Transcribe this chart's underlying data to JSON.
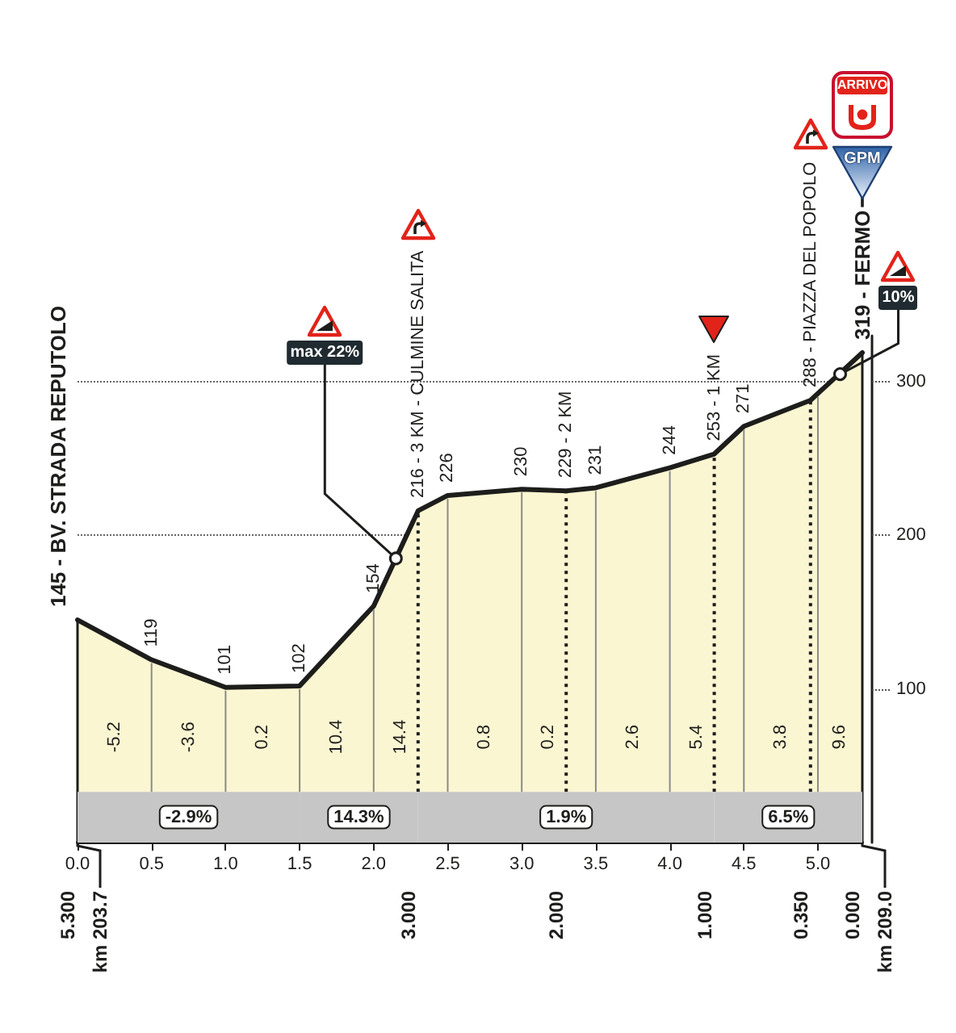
{
  "chart_data": {
    "type": "area",
    "x": [
      0,
      0.5,
      1,
      1.5,
      2,
      2.3,
      2.5,
      3,
      3.3,
      3.5,
      4,
      4.3,
      4.5,
      4.95,
      5.3
    ],
    "values": [
      145,
      119,
      101,
      102,
      154,
      216,
      226,
      230,
      229,
      231,
      244,
      253,
      271,
      288,
      319
    ],
    "value_labels": [
      "145 - BV. STRADA REPUTOLO",
      "119",
      "101",
      "102",
      "154",
      "216 - 3 KM - CULMINE SALITA",
      "226",
      "230",
      "229 - 2 KM",
      "231",
      "244",
      "253 - 1 KM",
      "271",
      "288 - PIAZZA DEL POPOLO",
      "319 - FERMO"
    ],
    "color": "#fbf6d2",
    "xlim": [
      0,
      5.3
    ],
    "xticks": [
      {
        "value": 0,
        "label": "0.0"
      },
      0.5,
      {
        "value": 1,
        "label": "1.0"
      },
      1.5,
      {
        "value": 2,
        "label": "2.0"
      },
      2.5,
      {
        "value": 3,
        "label": "3.0"
      },
      3.5,
      {
        "value": 4,
        "label": "4.0"
      },
      4.5,
      {
        "value": 5,
        "label": "5.0"
      }
    ],
    "x2lim": [
      5.3,
      0
    ],
    "x2ticks": [
      {
        "value": 5.3,
        "label": "5.300"
      },
      {
        "value": 3,
        "label": "3.000"
      },
      {
        "value": 2,
        "label": "2.000"
      },
      {
        "value": 1,
        "label": "1.000"
      },
      {
        "value": 0.35,
        "label": "0.350"
      },
      {
        "value": 0,
        "label": "0.000"
      }
    ],
    "ylim": [
      0,
      330
    ],
    "yticks": [
      100,
      200,
      300
    ],
    "grid": true,
    "bands": [
      {
        "axis": "x",
        "from": 0,
        "to": 1.5,
        "label": "-2.9%",
        "color": "#c6c6c6"
      },
      {
        "axis": "x",
        "from": 1.5,
        "to": 2.3,
        "label": "14.3%",
        "color": "#c6c6c6"
      },
      {
        "axis": "x",
        "from": 2.3,
        "to": 4.3,
        "label": "1.9%",
        "color": "#c6c6c6"
      },
      {
        "axis": "x",
        "from": 4.3,
        "to": 5.3,
        "label": "6.5%",
        "color": "#c6c6c6"
      }
    ],
    "ref_lines": [
      {
        "axis": "x",
        "value": 2.3,
        "line_style": "dotted"
      },
      {
        "axis": "x",
        "value": 3.3,
        "line_style": "dotted"
      },
      {
        "axis": "x",
        "value": 4.3,
        "line_style": "dotted"
      },
      {
        "axis": "x",
        "value": 4.95,
        "line_style": "dotted"
      }
    ],
    "annotations": [
      "-5.2",
      "-3.6",
      "0.2",
      "10.4",
      "14.4",
      "0.8",
      "0.2",
      "2.6",
      "5.4",
      "3.8",
      "9.6",
      {
        "text": "max 22%",
        "x": 2.15,
        "y": 185
      },
      {
        "text": "10%",
        "x": 5.15,
        "y": 305
      },
      "GPM",
      "ARRIVO",
      {
        "text": "km 203.7",
        "x": 0,
        "y": 145
      },
      "km 209.0"
    ]
  }
}
